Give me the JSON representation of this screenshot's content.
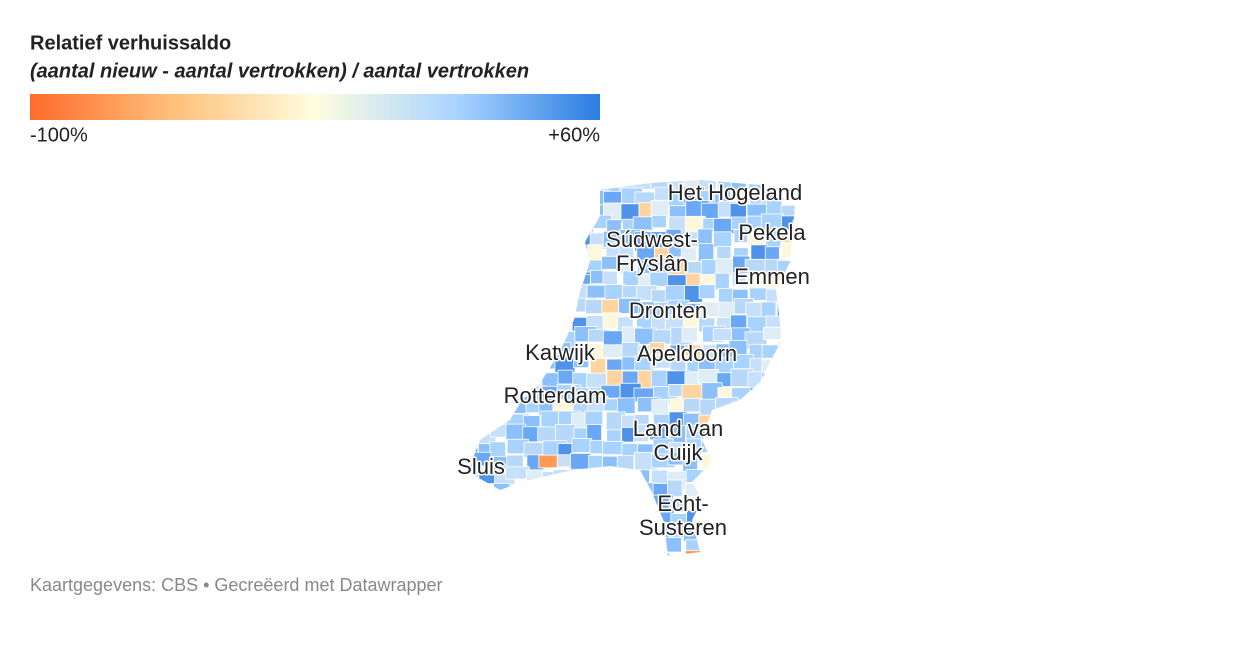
{
  "title": "Relatief verhuissaldo",
  "subtitle": "(aantal nieuw - aantal vertrokken) / aantal vertrokken",
  "legend": {
    "min": {
      "value": -100,
      "label": "-100%"
    },
    "max": {
      "value": 60,
      "label": "+60%"
    },
    "colors": [
      "#ff6b2b",
      "#ffbf7a",
      "#fffde0",
      "#a9d3ff",
      "#2a7de1"
    ]
  },
  "labels": [
    [
      "Het Hogeland"
    ],
    [
      "Súdwest-",
      "Fryslân"
    ],
    [
      "Pekela"
    ],
    [
      "Emmen"
    ],
    [
      "Dronten"
    ],
    [
      "Katwijk"
    ],
    [
      "Apeldoorn"
    ],
    [
      "Rotterdam"
    ],
    [
      "Land van",
      "Cuijk"
    ],
    [
      "Sluis"
    ],
    [
      "Echt-",
      "Susteren"
    ]
  ],
  "footer": "Kaartgegevens: CBS • Gecreëerd met Datawrapper"
}
